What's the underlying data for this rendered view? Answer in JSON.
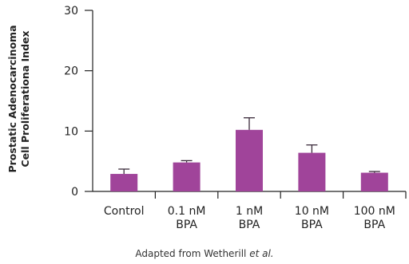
{
  "chart_data": {
    "type": "bar",
    "ylabel": [
      "Prostatic Adenocarcinoma",
      "Cell Proliferationa Index"
    ],
    "ylim": [
      0,
      30
    ],
    "yticks": [
      0,
      10,
      20,
      30
    ],
    "categories": [
      [
        "Control"
      ],
      [
        "0.1 nM",
        "BPA"
      ],
      [
        "1 nM",
        "BPA"
      ],
      [
        "10 nM",
        "BPA"
      ],
      [
        "100 nM",
        "BPA"
      ]
    ],
    "values": [
      2.9,
      4.8,
      10.2,
      6.4,
      3.1
    ],
    "error_upper": [
      0.8,
      0.3,
      2.0,
      1.3,
      0.2
    ],
    "bar_color": "#a0449a",
    "error_bar_color": "#3a2a3a",
    "grid": false,
    "legend": "none"
  },
  "caption": {
    "text": "Adapted from Wetherill",
    "italic": "et al."
  }
}
